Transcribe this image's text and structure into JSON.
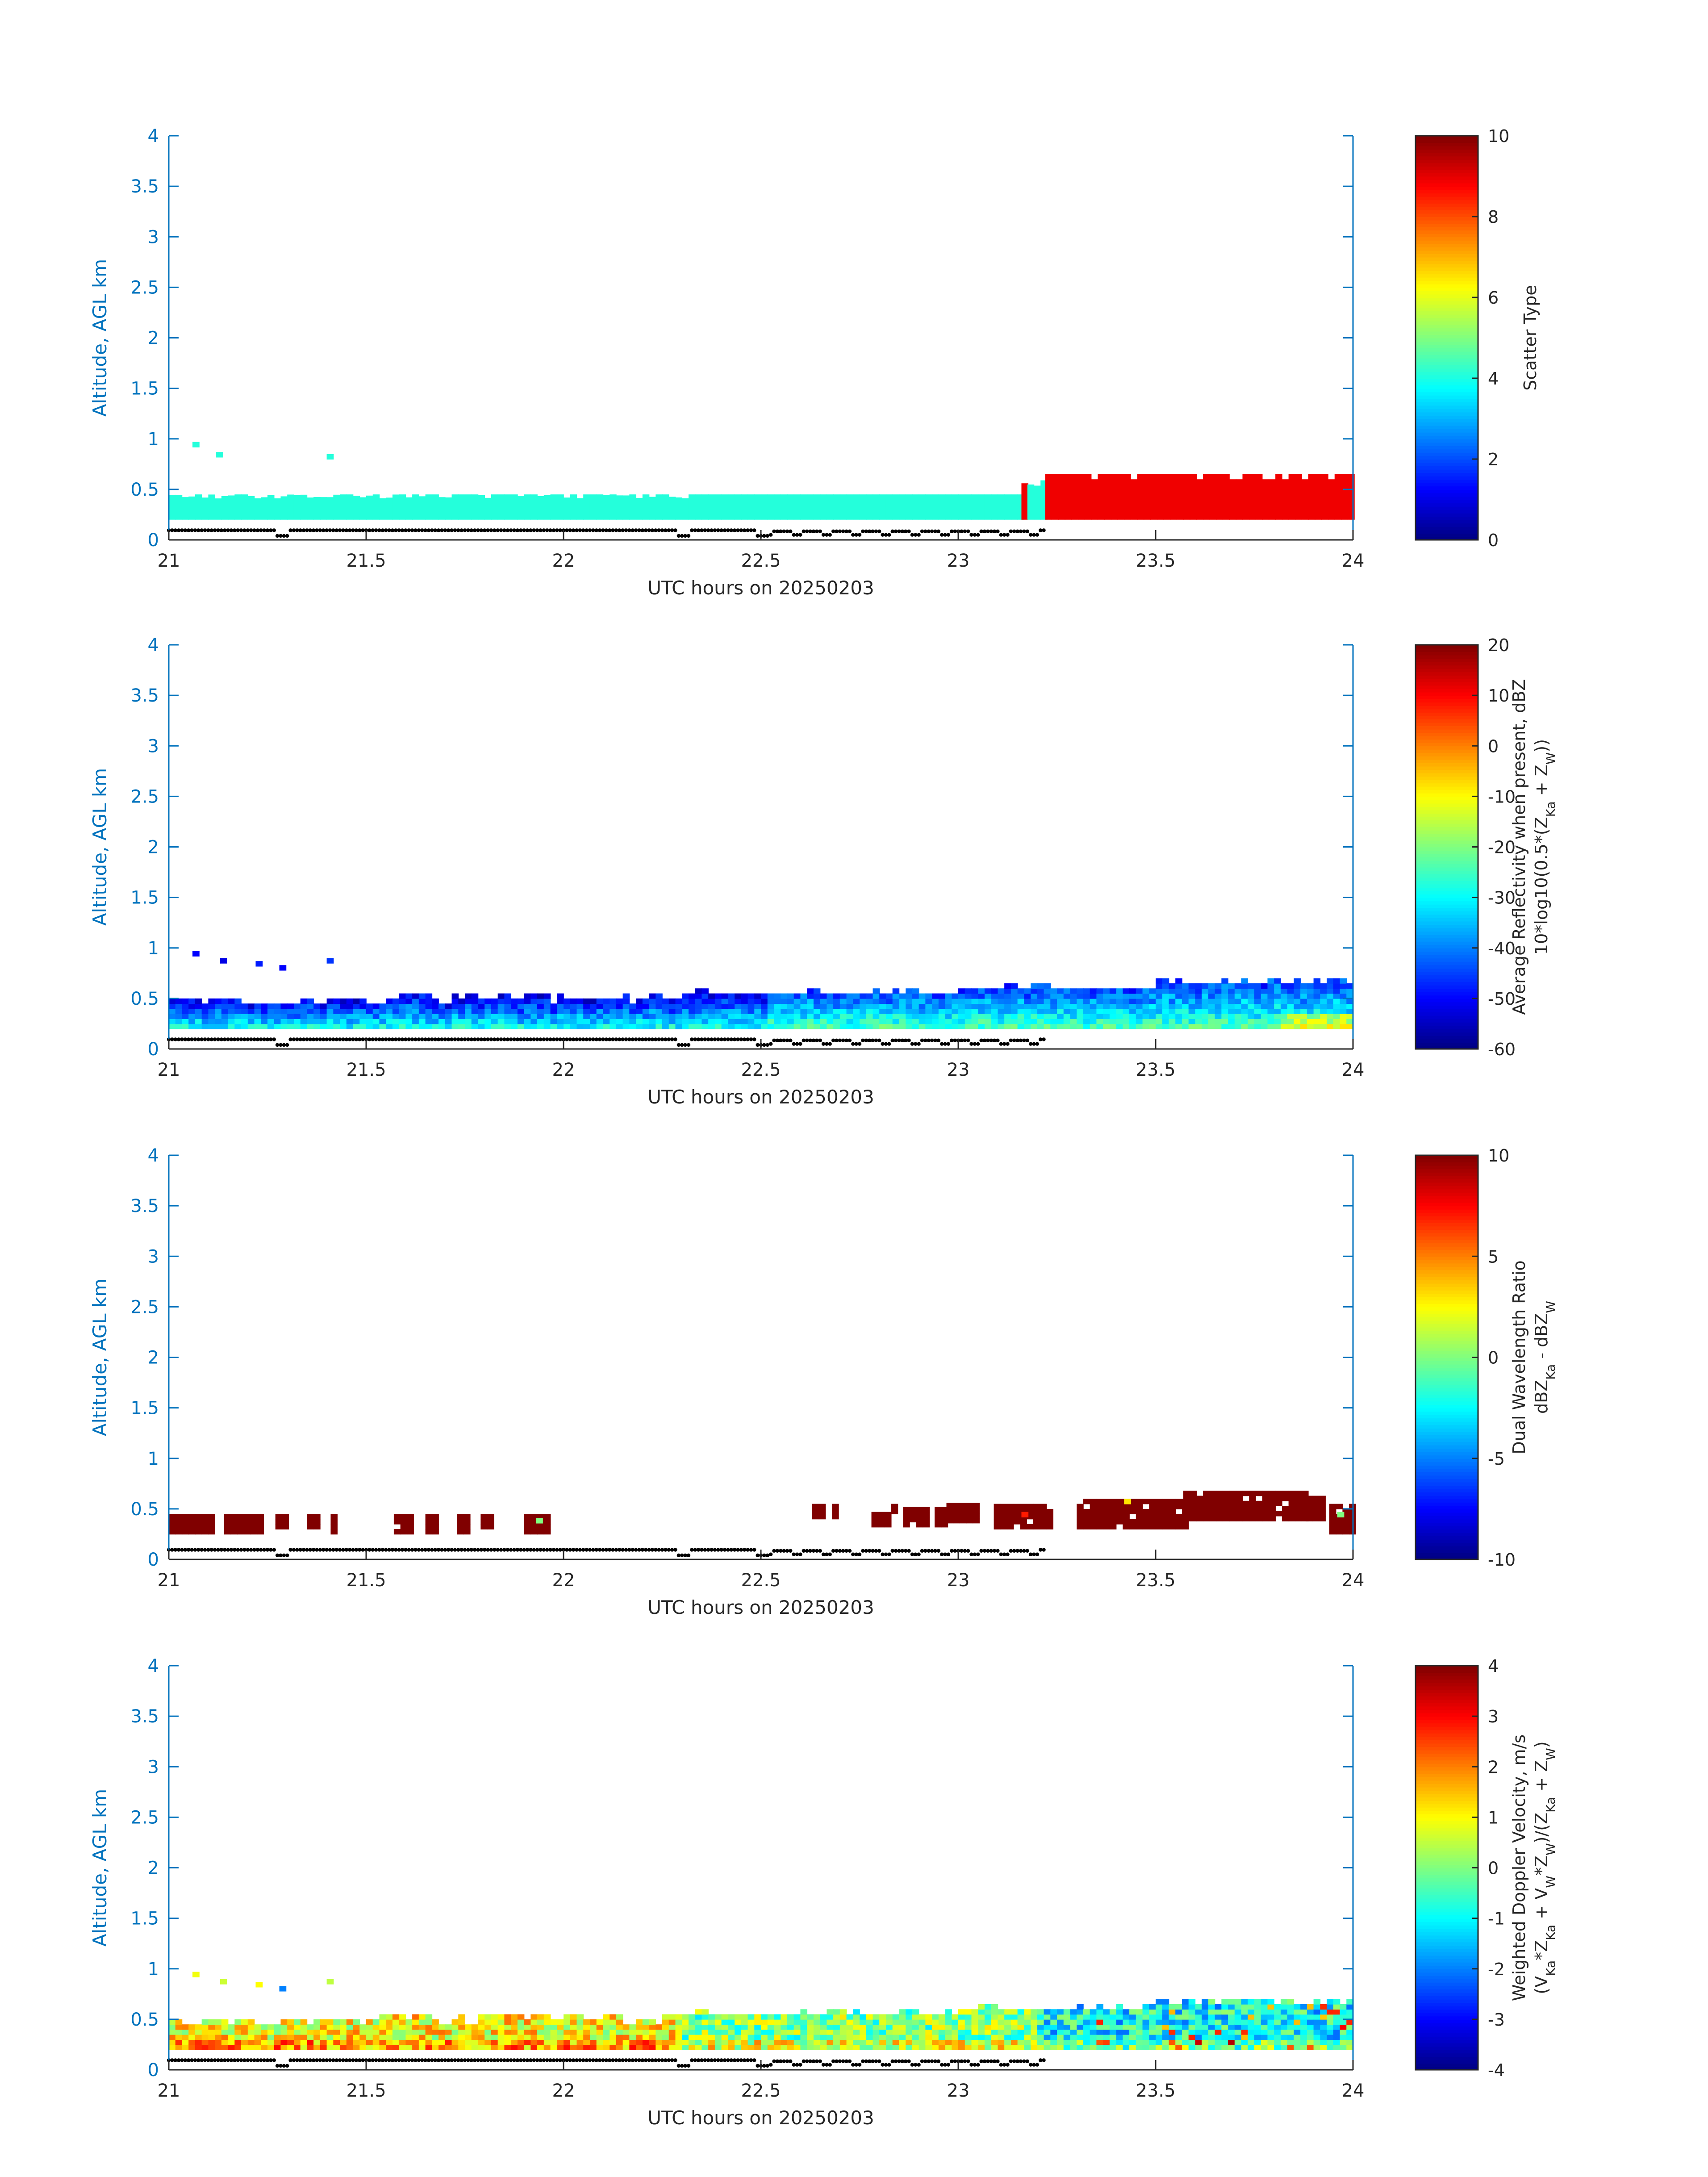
{
  "figure": {
    "colors": {
      "axis": "#0072BD",
      "text": "#262626",
      "marker": "#000000"
    },
    "colormap": "jet"
  },
  "chart_data": [
    {
      "type": "heatmap",
      "title": "",
      "xlabel": "UTC hours on 20250203",
      "ylabel": "Altitude, AGL km",
      "xlim": [
        21,
        24
      ],
      "ylim": [
        0,
        4
      ],
      "x_ticks": [
        "21",
        "21.5",
        "22",
        "22.5",
        "23",
        "23.5",
        "24"
      ],
      "y_ticks": [
        "0",
        "0.5",
        "1",
        "1.5",
        "2",
        "2.5",
        "3",
        "3.5",
        "4"
      ],
      "colorbar": {
        "label_lines": [
          "Scatter Type"
        ],
        "clim": [
          0,
          10
        ],
        "ticks": [
          "0",
          "2",
          "4",
          "6",
          "8",
          "10"
        ]
      },
      "layer": [
        {
          "x_start": 21.0,
          "x_end": 23.16,
          "bottom": 0.2,
          "top": 0.45,
          "value": 4.1,
          "note_value": "cloud"
        },
        {
          "x_start": 23.16,
          "x_end": 23.175,
          "bottom": 0.2,
          "top": 0.6,
          "value": 8.9
        },
        {
          "x_start": 23.175,
          "x_end": 23.22,
          "bottom": 0.2,
          "top": 0.6,
          "value": 4.1
        },
        {
          "x_start": 23.22,
          "x_end": 24.0,
          "bottom": 0.2,
          "top": 0.65,
          "value": 8.9
        }
      ],
      "isolated_points": [
        {
          "x": 21.06,
          "y": 0.92,
          "value": 4.1
        },
        {
          "x": 21.12,
          "y": 0.82,
          "value": 4.1
        },
        {
          "x": 21.4,
          "y": 0.8,
          "value": 4.1
        }
      ]
    },
    {
      "type": "heatmap",
      "title": "",
      "xlabel": "UTC hours on 20250203",
      "ylabel": "Altitude, AGL km",
      "xlim": [
        21,
        24
      ],
      "ylim": [
        0,
        4
      ],
      "x_ticks": [
        "21",
        "21.5",
        "22",
        "22.5",
        "23",
        "23.5",
        "24"
      ],
      "y_ticks": [
        "0",
        "0.5",
        "1",
        "1.5",
        "2",
        "2.5",
        "3",
        "3.5",
        "4"
      ],
      "colorbar": {
        "label_lines": [
          "Average Reflectivity when present, dBZ",
          "10*log10(0.5*(Z_Ka + Z_W))"
        ],
        "clim": [
          -60,
          20
        ],
        "ticks": [
          "-60",
          "-50",
          "-40",
          "-30",
          "-20",
          "-10",
          "0",
          "10",
          "20"
        ]
      },
      "value_profile": {
        "bottom_value": -30,
        "top_value": -52,
        "late_bottom_value": -25,
        "late_top_value": -45
      },
      "isolated_points": [
        {
          "x": 21.06,
          "y": 0.92,
          "value": -50
        },
        {
          "x": 21.13,
          "y": 0.85,
          "value": -52
        },
        {
          "x": 21.22,
          "y": 0.82,
          "value": -48
        },
        {
          "x": 21.28,
          "y": 0.78,
          "value": -50
        },
        {
          "x": 21.4,
          "y": 0.85,
          "value": -46
        }
      ]
    },
    {
      "type": "heatmap",
      "title": "",
      "xlabel": "UTC hours on 20250203",
      "ylabel": "Altitude, AGL km",
      "xlim": [
        21,
        24
      ],
      "ylim": [
        0,
        4
      ],
      "x_ticks": [
        "21",
        "21.5",
        "22",
        "22.5",
        "23",
        "23.5",
        "24"
      ],
      "y_ticks": [
        "0",
        "0.5",
        "1",
        "1.5",
        "2",
        "2.5",
        "3",
        "3.5",
        "4"
      ],
      "colorbar": {
        "label_lines": [
          "Dual Wavelength Ratio",
          "dBZ_Ka - dBZ_W"
        ],
        "clim": [
          -10,
          10
        ],
        "ticks": [
          "-10",
          "-5",
          "0",
          "5",
          "10"
        ]
      },
      "segments": [
        {
          "x_start": 21.0,
          "x_end": 21.11,
          "bottom": 0.25,
          "top": 0.42,
          "value": 10
        },
        {
          "x_start": 21.14,
          "x_end": 21.24,
          "bottom": 0.25,
          "top": 0.42,
          "value": 10
        },
        {
          "x_start": 21.27,
          "x_end": 21.3,
          "bottom": 0.3,
          "top": 0.42,
          "value": 10
        },
        {
          "x_start": 21.35,
          "x_end": 21.38,
          "bottom": 0.3,
          "top": 0.42,
          "value": 10
        },
        {
          "x_start": 21.41,
          "x_end": 21.42,
          "bottom": 0.25,
          "top": 0.42,
          "value": 10
        },
        {
          "x_start": 21.57,
          "x_end": 21.61,
          "bottom": 0.25,
          "top": 0.45,
          "value": 10
        },
        {
          "x_start": 21.65,
          "x_end": 21.67,
          "bottom": 0.25,
          "top": 0.42,
          "value": 10
        },
        {
          "x_start": 21.73,
          "x_end": 21.75,
          "bottom": 0.25,
          "top": 0.42,
          "value": 10
        },
        {
          "x_start": 21.79,
          "x_end": 21.82,
          "bottom": 0.3,
          "top": 0.45,
          "value": 10
        },
        {
          "x_start": 21.9,
          "x_end": 21.96,
          "bottom": 0.25,
          "top": 0.42,
          "value": 10
        },
        {
          "x_start": 22.63,
          "x_end": 22.65,
          "bottom": 0.4,
          "top": 0.52,
          "value": 10
        },
        {
          "x_start": 22.68,
          "x_end": 22.69,
          "bottom": 0.4,
          "top": 0.52,
          "value": 10
        },
        {
          "x_start": 22.78,
          "x_end": 22.82,
          "bottom": 0.32,
          "top": 0.45,
          "value": 10
        },
        {
          "x_start": 22.83,
          "x_end": 22.84,
          "bottom": 0.4,
          "top": 0.52,
          "value": 10
        },
        {
          "x_start": 22.86,
          "x_end": 22.92,
          "bottom": 0.32,
          "top": 0.52,
          "value": 10
        },
        {
          "x_start": 22.94,
          "x_end": 22.96,
          "bottom": 0.32,
          "top": 0.48,
          "value": 10
        },
        {
          "x_start": 22.97,
          "x_end": 23.05,
          "bottom": 0.36,
          "top": 0.52,
          "value": 10
        },
        {
          "x_start": 23.09,
          "x_end": 23.24,
          "bottom": 0.3,
          "top": 0.55,
          "value": 10
        },
        {
          "x_start": 23.3,
          "x_end": 23.57,
          "bottom": 0.3,
          "top": 0.58,
          "value": 10
        },
        {
          "x_start": 23.57,
          "x_end": 23.88,
          "bottom": 0.38,
          "top": 0.68,
          "value": 10
        },
        {
          "x_start": 23.88,
          "x_end": 23.93,
          "bottom": 0.38,
          "top": 0.6,
          "value": 10
        },
        {
          "x_start": 23.94,
          "x_end": 24.0,
          "bottom": 0.25,
          "top": 0.52,
          "value": 10
        }
      ],
      "isolated_points": [
        {
          "x": 21.93,
          "y": 0.36,
          "value": 0
        },
        {
          "x": 23.16,
          "y": 0.42,
          "value": 7
        },
        {
          "x": 23.42,
          "y": 0.55,
          "value": 3
        },
        {
          "x": 23.96,
          "y": 0.42,
          "value": 0
        }
      ]
    },
    {
      "type": "heatmap",
      "title": "",
      "xlabel": "UTC hours on 20250203",
      "ylabel": "Altitude, AGL km",
      "xlim": [
        21,
        24
      ],
      "ylim": [
        0,
        4
      ],
      "x_ticks": [
        "21",
        "21.5",
        "22",
        "22.5",
        "23",
        "23.5",
        "24"
      ],
      "y_ticks": [
        "0",
        "0.5",
        "1",
        "1.5",
        "2",
        "2.5",
        "3",
        "3.5",
        "4"
      ],
      "colorbar": {
        "label_lines": [
          "Weighted Doppler Velocity, m/s",
          "(V_Ka*Z_Ka + V_W*Z_W)/(Z_Ka + Z_W)"
        ],
        "clim": [
          -4,
          4
        ],
        "ticks": [
          "-4",
          "-3",
          "-2",
          "-1",
          "0",
          "1",
          "2",
          "3",
          "4"
        ]
      },
      "value_profile": {
        "early_value": 1.0,
        "late_value": -1.0
      },
      "isolated_points": [
        {
          "x": 21.06,
          "y": 0.92,
          "value": 0.9
        },
        {
          "x": 21.13,
          "y": 0.85,
          "value": 0.6
        },
        {
          "x": 21.22,
          "y": 0.82,
          "value": 1.0
        },
        {
          "x": 21.28,
          "y": 0.78,
          "value": -2.0
        },
        {
          "x": 21.4,
          "y": 0.85,
          "value": 0.5
        }
      ]
    }
  ]
}
